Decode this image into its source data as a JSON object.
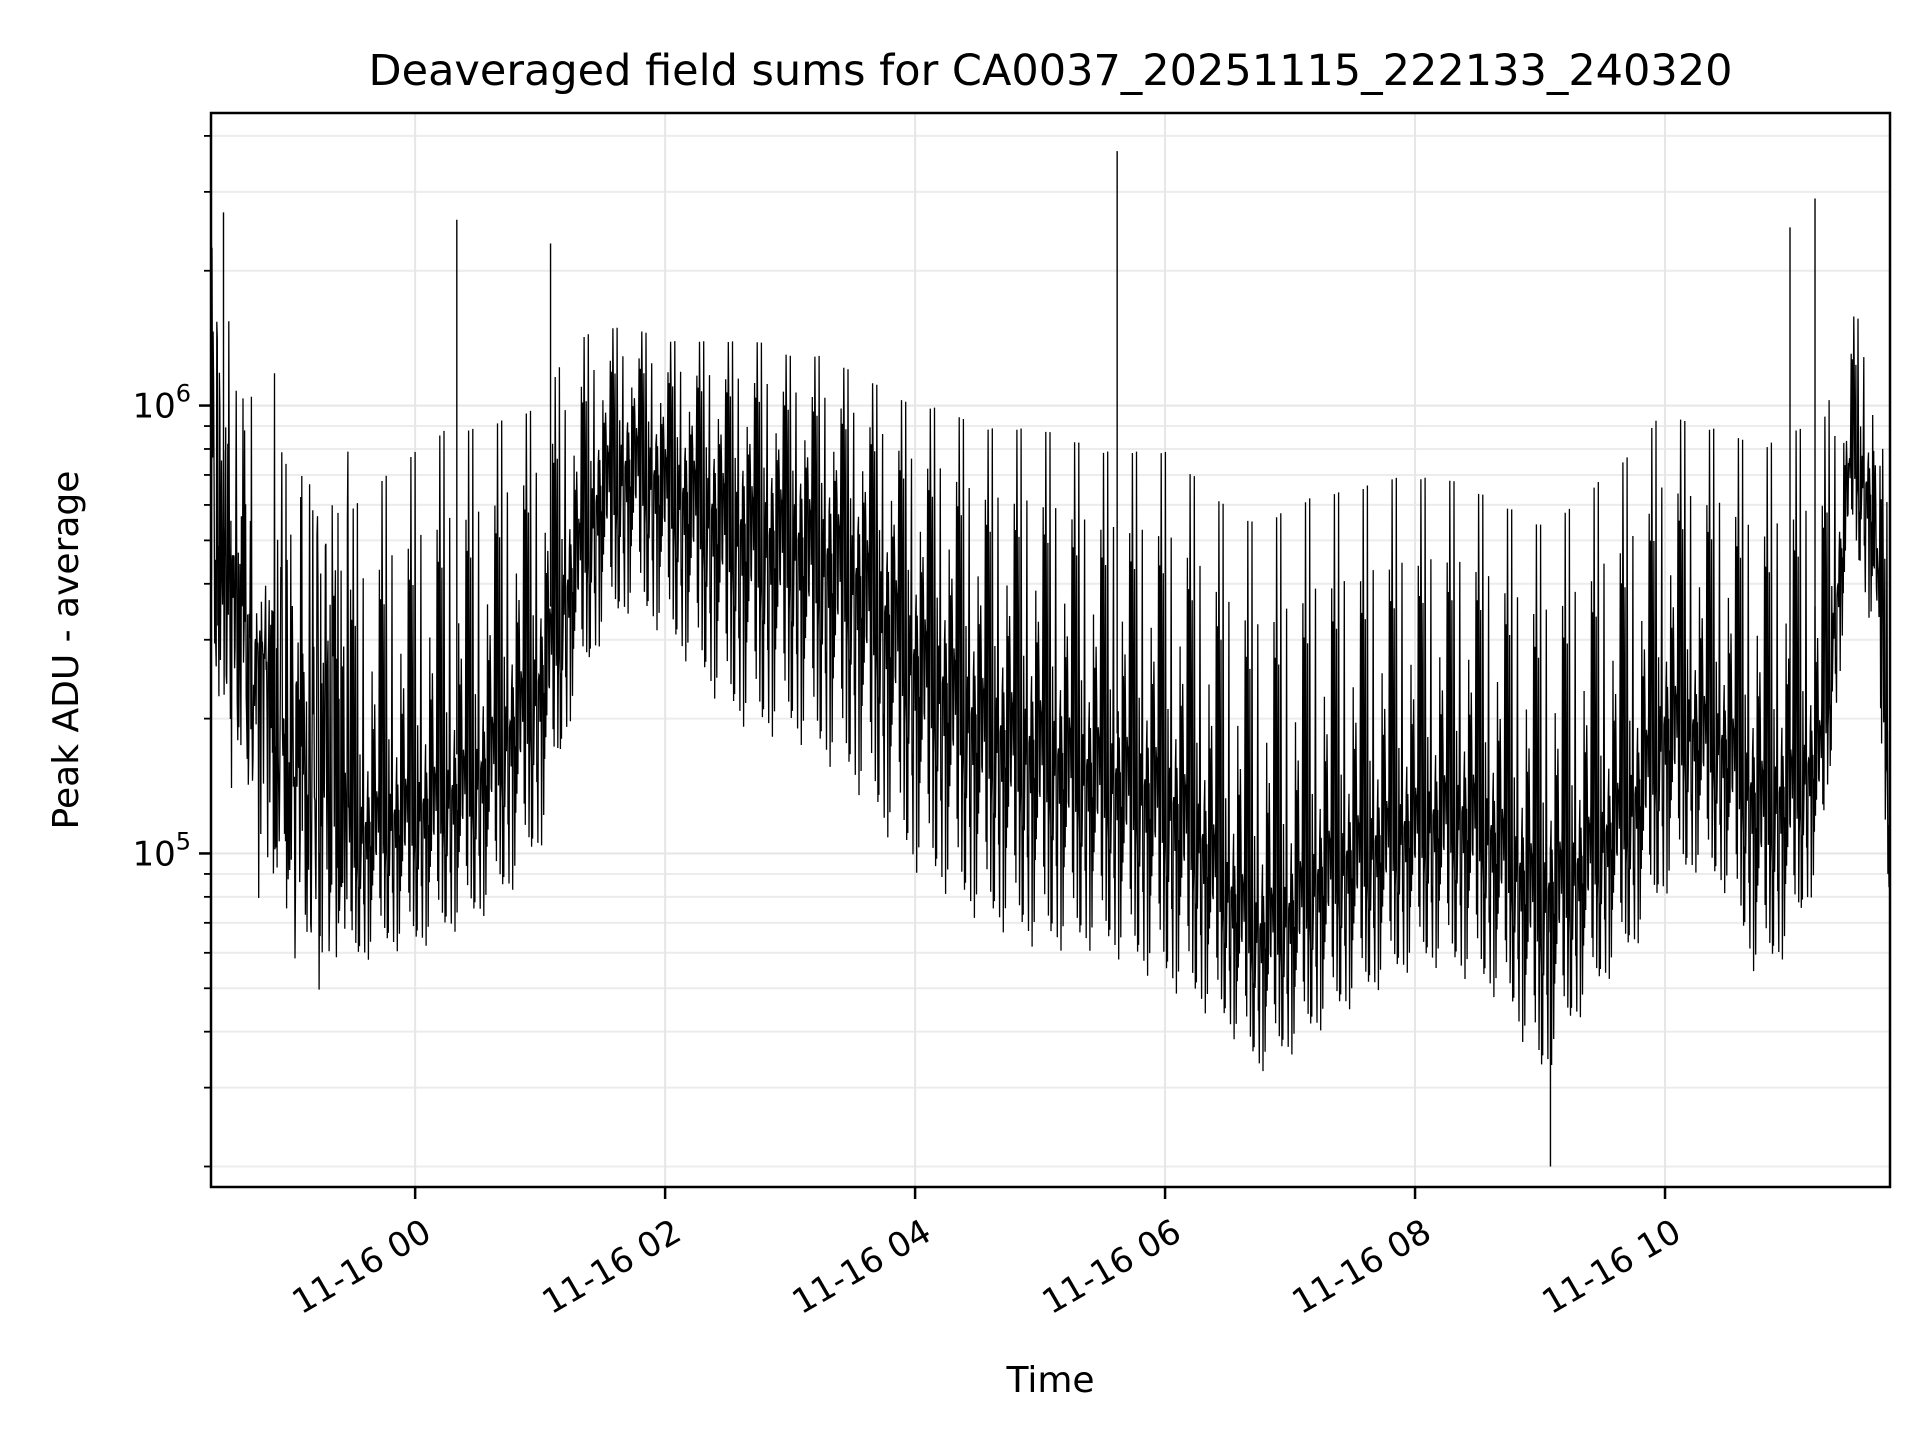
{
  "chart_data": {
    "type": "line",
    "title": "Deaveraged field sums for CA0037_20251115_222133_240320",
    "xlabel": "Time",
    "ylabel": "Peak ADU - average",
    "yscale": "log",
    "ylim": [
      18000,
      4500000
    ],
    "xlim": [
      "2025-11-15 22:22",
      "2025-11-16 11:48"
    ],
    "x_ticks": [
      "2025-11-16 00:00",
      "2025-11-16 02:00",
      "2025-11-16 04:00",
      "2025-11-16 06:00",
      "2025-11-16 08:00",
      "2025-11-16 10:00"
    ],
    "x_tick_labels": [
      "11-16 00",
      "11-16 02",
      "11-16 04",
      "11-16 06",
      "11-16 08",
      "11-16 10"
    ],
    "y_ticks": [
      100000,
      1000000
    ],
    "y_tick_labels": [
      {
        "base": "10",
        "exp": "5"
      },
      {
        "base": "10",
        "exp": "6"
      }
    ],
    "grid": true,
    "line_color": "#000000",
    "series": [
      {
        "x": [
          "2025-11-15 22:22",
          "2025-11-15 22:30",
          "2025-11-15 22:45",
          "2025-11-15 23:00",
          "2025-11-15 23:15",
          "2025-11-15 23:30",
          "2025-11-15 23:45",
          "2025-11-16 00:00",
          "2025-11-16 00:15",
          "2025-11-16 00:30",
          "2025-11-16 00:45",
          "2025-11-16 01:00",
          "2025-11-16 01:15",
          "2025-11-16 01:30",
          "2025-11-16 01:45",
          "2025-11-16 02:00",
          "2025-11-16 02:15",
          "2025-11-16 02:30",
          "2025-11-16 02:45",
          "2025-11-16 03:00",
          "2025-11-16 03:15",
          "2025-11-16 03:30",
          "2025-11-16 03:45",
          "2025-11-16 04:00",
          "2025-11-16 04:15",
          "2025-11-16 04:30",
          "2025-11-16 04:45",
          "2025-11-16 05:00",
          "2025-11-16 05:15",
          "2025-11-16 05:30",
          "2025-11-16 05:45",
          "2025-11-16 06:00",
          "2025-11-16 06:15",
          "2025-11-16 06:30",
          "2025-11-16 06:45",
          "2025-11-16 07:00",
          "2025-11-16 07:15",
          "2025-11-16 07:30",
          "2025-11-16 07:45",
          "2025-11-16 08:00",
          "2025-11-16 08:15",
          "2025-11-16 08:30",
          "2025-11-16 08:45",
          "2025-11-16 09:00",
          "2025-11-16 09:15",
          "2025-11-16 09:30",
          "2025-11-16 09:45",
          "2025-11-16 10:00",
          "2025-11-16 10:15",
          "2025-11-16 10:30",
          "2025-11-16 10:45",
          "2025-11-16 11:00",
          "2025-11-16 11:15",
          "2025-11-16 11:30",
          "2025-11-16 11:40",
          "2025-11-16 11:48"
        ],
        "mid": [
          500000,
          450000,
          300000,
          180000,
          150000,
          130000,
          140000,
          150000,
          160000,
          180000,
          230000,
          300000,
          500000,
          800000,
          900000,
          800000,
          750000,
          700000,
          650000,
          650000,
          600000,
          550000,
          450000,
          350000,
          300000,
          250000,
          230000,
          220000,
          200000,
          190000,
          180000,
          170000,
          140000,
          100000,
          80000,
          90000,
          110000,
          120000,
          130000,
          140000,
          150000,
          150000,
          120000,
          100000,
          110000,
          130000,
          160000,
          240000,
          230000,
          210000,
          160000,
          170000,
          200000,
          900000,
          700000,
          150000
        ],
        "low": [
          250000,
          180000,
          100000,
          70000,
          60000,
          55000,
          60000,
          60000,
          65000,
          70000,
          80000,
          100000,
          200000,
          300000,
          350000,
          300000,
          250000,
          200000,
          180000,
          180000,
          160000,
          140000,
          110000,
          90000,
          80000,
          70000,
          65000,
          60000,
          60000,
          60000,
          55000,
          50000,
          45000,
          40000,
          32000,
          35000,
          40000,
          45000,
          50000,
          55000,
          55000,
          50000,
          45000,
          30000,
          40000,
          50000,
          60000,
          80000,
          90000,
          80000,
          50000,
          60000,
          90000,
          500000,
          300000,
          70000
        ],
        "high": [
          1500000,
          1400000,
          1000000,
          800000,
          700000,
          600000,
          700000,
          800000,
          900000,
          900000,
          950000,
          1000000,
          1400000,
          1500000,
          1500000,
          1400000,
          1400000,
          1400000,
          1400000,
          1300000,
          1300000,
          1200000,
          1100000,
          1000000,
          1000000,
          900000,
          900000,
          900000,
          850000,
          800000,
          800000,
          800000,
          700000,
          600000,
          550000,
          600000,
          650000,
          650000,
          700000,
          700000,
          700000,
          650000,
          600000,
          550000,
          600000,
          700000,
          800000,
          1000000,
          900000,
          900000,
          800000,
          900000,
          900000,
          1600000,
          1500000,
          500000
        ]
      }
    ],
    "spikes": [
      {
        "x": "2025-11-15 22:28",
        "y": 2700000
      },
      {
        "x": "2025-11-16 00:20",
        "y": 2600000
      },
      {
        "x": "2025-11-16 01:05",
        "y": 2300000
      },
      {
        "x": "2025-11-16 05:37",
        "y": 3700000
      },
      {
        "x": "2025-11-16 09:05",
        "y": 20000
      },
      {
        "x": "2025-11-16 11:00",
        "y": 2500000
      },
      {
        "x": "2025-11-16 11:12",
        "y": 2900000
      }
    ]
  }
}
